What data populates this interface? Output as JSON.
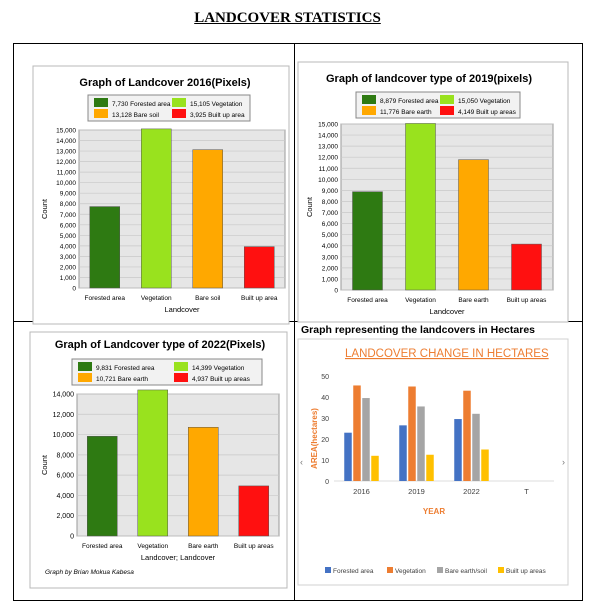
{
  "page": {
    "heading": "LANDCOVER STATISTICS"
  },
  "panel4_caption": "Graph representing the landcovers in Hectares",
  "credit": "Graph by Brian Mokua Kabesa",
  "colors": {
    "forest": "#2e7a12",
    "vegetation": "#99e21e",
    "bare": "#ffa800",
    "built": "#ff1010",
    "h_forest": "#4472c4",
    "h_veg": "#ed7d31",
    "h_bare": "#a5a5a5",
    "h_built": "#ffc000"
  },
  "chart_data": [
    {
      "type": "bar",
      "title": "Graph of Landcover 2016(Pixels)",
      "xlabel": "Landcover",
      "ylabel": "Count",
      "categories": [
        "Forested area",
        "Vegetation",
        "Bare soil",
        "Built up area"
      ],
      "values": [
        7730,
        15105,
        13128,
        3925
      ],
      "legend": [
        "7,730 Forested area",
        "15,105 Vegetation",
        "13,128 Bare soil",
        "3,925 Built up area"
      ],
      "ylim": [
        0,
        15000
      ],
      "yticks": [
        "0",
        "1,000",
        "2,000",
        "3,000",
        "4,000",
        "5,000",
        "6,000",
        "7,000",
        "8,000",
        "9,000",
        "10,000",
        "11,000",
        "12,000",
        "13,000",
        "14,000",
        "15,000"
      ]
    },
    {
      "type": "bar",
      "title": "Graph of landcover type of 2019(pixels)",
      "xlabel": "Landcover",
      "ylabel": "Count",
      "categories": [
        "Forested area",
        "Vegetation",
        "Bare earth",
        "Built up areas"
      ],
      "values": [
        8879,
        15050,
        11776,
        4149
      ],
      "legend": [
        "8,879 Forested area",
        "15,050 Vegetation",
        "11,776 Bare earth",
        "4,149 Built up areas"
      ],
      "ylim": [
        0,
        15000
      ],
      "yticks": [
        "0",
        "1,000",
        "2,000",
        "3,000",
        "4,000",
        "5,000",
        "6,000",
        "7,000",
        "8,000",
        "9,000",
        "10,000",
        "11,000",
        "12,000",
        "13,000",
        "14,000",
        "15,000"
      ]
    },
    {
      "type": "bar",
      "title": "Graph of Landcover type of 2022(Pixels)",
      "xlabel": "Landcover; Landcover",
      "ylabel": "Count",
      "categories": [
        "Forested area",
        "Vegetation",
        "Bare earth",
        "Built up areas"
      ],
      "values": [
        9831,
        14399,
        10721,
        4937
      ],
      "legend": [
        "9,831 Forested area",
        "14,399 Vegetation",
        "10,721 Bare earth",
        "4,937 Built up areas"
      ],
      "ylim": [
        0,
        14000
      ],
      "yticks": [
        "0",
        "2,000",
        "4,000",
        "6,000",
        "8,000",
        "10,000",
        "12,000",
        "14,000"
      ]
    },
    {
      "type": "bar",
      "title": "LANDCOVER CHANGE IN HECTARES",
      "xlabel": "YEAR",
      "ylabel": "AREA(hectares)",
      "categories": [
        "2016",
        "2019",
        "2022",
        "T"
      ],
      "series": [
        {
          "name": "Forested area",
          "values": [
            23,
            26.5,
            29.5,
            null
          ]
        },
        {
          "name": "Vegetation",
          "values": [
            45.5,
            45,
            43,
            null
          ]
        },
        {
          "name": "Bare earth/soil",
          "values": [
            39.5,
            35.5,
            32,
            null
          ]
        },
        {
          "name": "Built up areas",
          "values": [
            12,
            12.5,
            15,
            null
          ]
        }
      ],
      "ylim": [
        0,
        50
      ],
      "yticks": [
        "0",
        "10",
        "20",
        "30",
        "40",
        "50"
      ],
      "grid": false,
      "legend_position": "bottom"
    }
  ]
}
